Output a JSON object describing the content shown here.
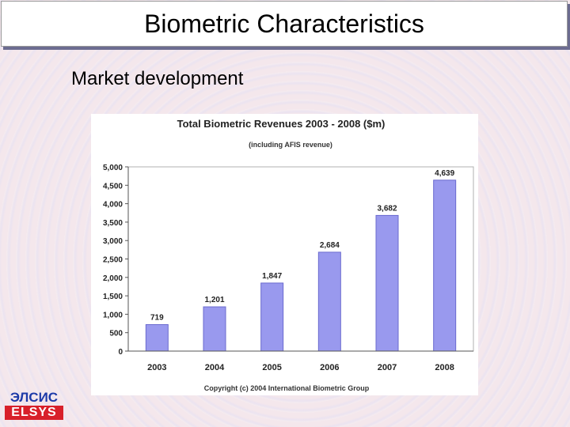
{
  "slide": {
    "title": "Biometric Characteristics",
    "subtitle": "Market development"
  },
  "logo": {
    "top_text": "ЭЛСИС",
    "bottom_text": "ELSYS"
  },
  "colors": {
    "bar": "#9999ee",
    "bar_edge": "#6b6bcf",
    "plot_bg": "#ffffff",
    "grid": "#b0b0b0"
  },
  "chart_data": {
    "type": "bar",
    "title": "Total Biometric Revenues 2003 - 2008 ($m)",
    "subtitle": "(including AFIS revenue)",
    "categories": [
      "2003",
      "2004",
      "2005",
      "2006",
      "2007",
      "2008"
    ],
    "values": [
      719,
      1201,
      1847,
      2684,
      3682,
      4639
    ],
    "data_labels": [
      "719",
      "1,201",
      "1,847",
      "2,684",
      "3,682",
      "4,639"
    ],
    "ylim": [
      0,
      5000
    ],
    "yticks": [
      "0",
      "500",
      "1,000",
      "1,500",
      "2,000",
      "2,500",
      "3,000",
      "3,500",
      "4,000",
      "4,500",
      "5,000"
    ],
    "footer": "Copyright (c) 2004 International Biometric Group",
    "grid": false,
    "legend": "none"
  }
}
